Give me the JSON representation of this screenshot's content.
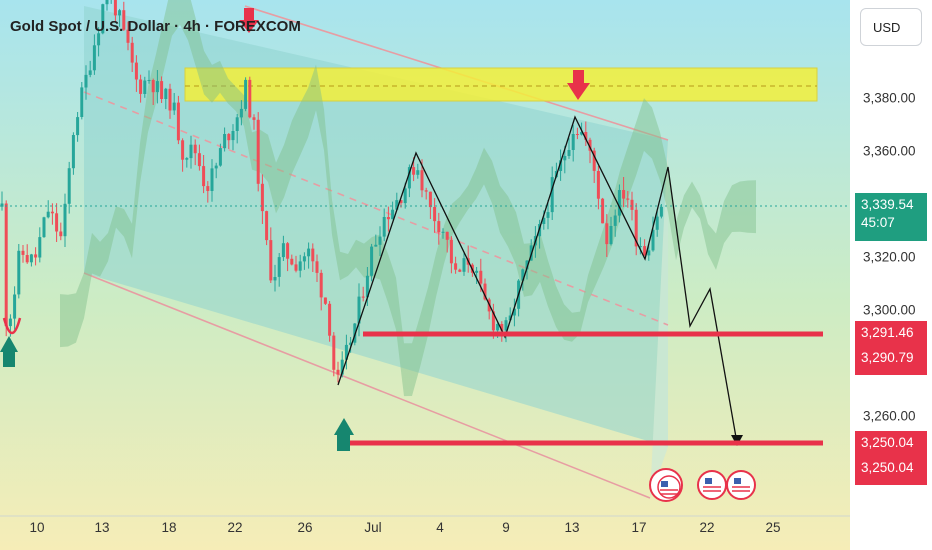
{
  "title": "Gold Spot / U.S. Dollar · 4h · FOREXCOM",
  "currency_button": "USD",
  "colors": {
    "bull": "#26a69a",
    "bear": "#ef4d57",
    "channel": "#8fd3cf",
    "cloud": "#7fbf8a",
    "resistance_band": "#f3ef3a",
    "level_line": "#e8324a",
    "arrow_up": "#16866f",
    "arrow_down": "#e8324a"
  },
  "chart_data": {
    "type": "candlestick",
    "symbol": "Gold Spot / U.S. Dollar",
    "timeframe": "4h",
    "source": "FOREXCOM",
    "x_tick_labels": [
      "10",
      "13",
      "18",
      "22",
      "26",
      "Jul",
      "4",
      "9",
      "13",
      "17",
      "22",
      "25"
    ],
    "y_tick_labels": [
      "3,380.00",
      "3,360.00",
      "3,320.00",
      "3,300.00",
      "3,260.00"
    ],
    "ylim": [
      3217,
      3424
    ],
    "last_price": "3,339.54",
    "countdown": "45:07",
    "price_labels": [
      {
        "value": "3,291.46",
        "color": "red"
      },
      {
        "value": "3,290.79",
        "color": "red"
      },
      {
        "value": "3,250.04",
        "color": "red"
      },
      {
        "value": "3,250.04",
        "color": "red"
      }
    ],
    "resistance_zone": [
      3377,
      3389
    ],
    "levels": [
      3291,
      3250.04
    ],
    "projection_path": [
      3336,
      3294,
      3307,
      3262,
      3251
    ],
    "events": [
      "US",
      "US",
      "US"
    ]
  }
}
